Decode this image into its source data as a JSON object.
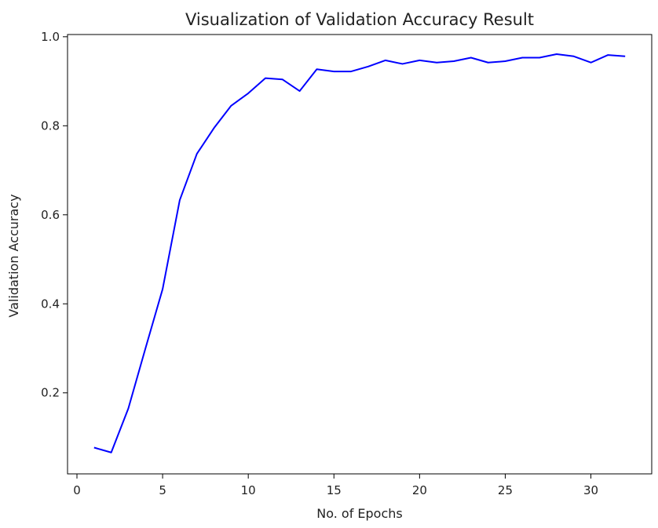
{
  "chart_data": {
    "type": "line",
    "title": "Visualization of Validation Accuracy Result",
    "xlabel": "No. of Epochs",
    "ylabel": "Validation Accuracy",
    "xlim": [
      -0.55,
      33.55
    ],
    "ylim": [
      0.018,
      1.005
    ],
    "xticks": [
      0,
      5,
      10,
      15,
      20,
      25,
      30
    ],
    "yticks": [
      0.2,
      0.4,
      0.6,
      0.8,
      1.0
    ],
    "grid": false,
    "colors": {
      "line": "#0000ff",
      "axes": "#000000",
      "text": "#222222"
    },
    "series": [
      {
        "x": [
          1,
          2,
          3,
          4,
          5,
          6,
          7,
          8,
          9,
          10,
          11,
          12,
          13,
          14,
          15,
          16,
          17,
          18,
          19,
          20,
          21,
          22,
          23,
          24,
          25,
          26,
          27,
          28,
          29,
          30,
          31,
          32
        ],
        "values": [
          0.077,
          0.066,
          0.165,
          0.3,
          0.433,
          0.633,
          0.737,
          0.795,
          0.845,
          0.873,
          0.907,
          0.904,
          0.878,
          0.927,
          0.922,
          0.922,
          0.933,
          0.947,
          0.939,
          0.947,
          0.942,
          0.945,
          0.953,
          0.942,
          0.945,
          0.953,
          0.953,
          0.961,
          0.956,
          0.942,
          0.959,
          0.956
        ]
      }
    ]
  }
}
